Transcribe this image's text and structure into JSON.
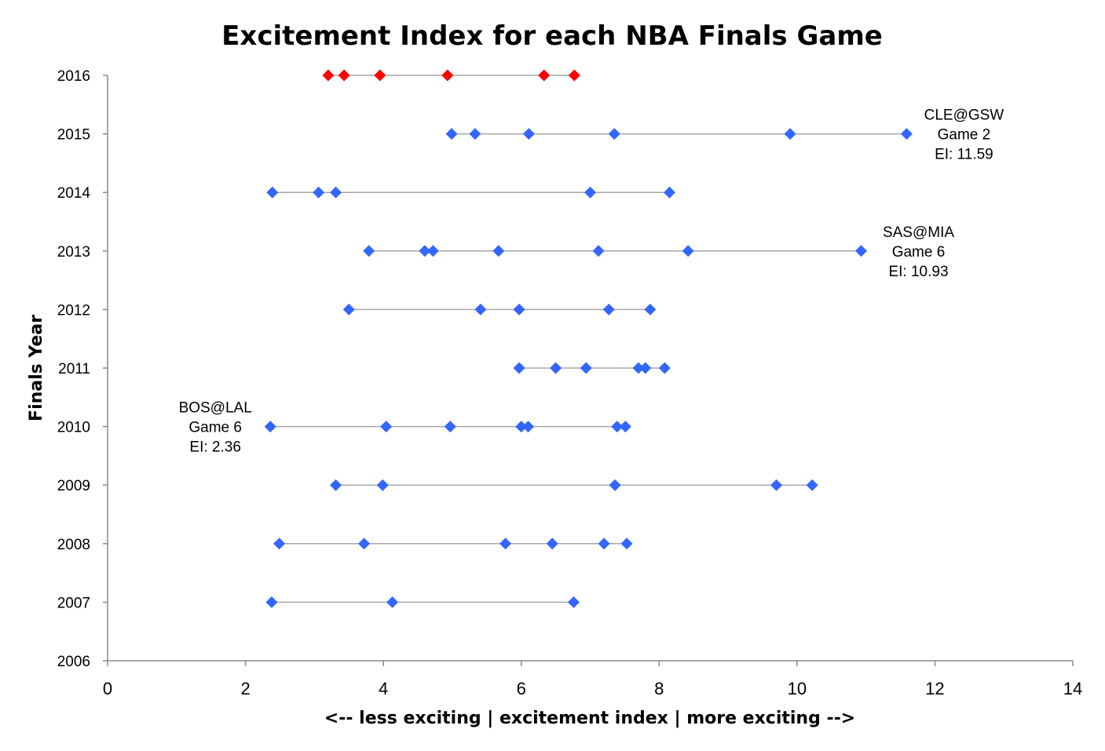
{
  "chart_data": {
    "type": "scatter",
    "title": "Excitement Index for each NBA Finals Game",
    "xlabel": "<-- less exciting | excitement index | more exciting -->",
    "ylabel": "Finals Year",
    "xlim": [
      0,
      14
    ],
    "ylim": [
      2006,
      2016
    ],
    "x_ticks": [
      "0",
      "2",
      "4",
      "6",
      "8",
      "10",
      "12",
      "14"
    ],
    "y_ticks": [
      "2006",
      "2007",
      "2008",
      "2009",
      "2010",
      "2011",
      "2012",
      "2013",
      "2014",
      "2015",
      "2016"
    ],
    "grid": false,
    "legend": "none",
    "colors": {
      "highlight": "#ff0000",
      "default": "#3366ff",
      "line": "#a6a6a6"
    },
    "series": [
      {
        "year": 2016,
        "color": "#ff0000",
        "values": [
          3.2,
          3.43,
          3.95,
          4.93,
          6.33,
          6.77
        ]
      },
      {
        "year": 2015,
        "color": "#3366ff",
        "values": [
          4.99,
          5.33,
          6.11,
          7.35,
          9.9,
          11.59
        ]
      },
      {
        "year": 2014,
        "color": "#3366ff",
        "values": [
          2.39,
          3.06,
          3.31,
          7.0,
          8.15
        ]
      },
      {
        "year": 2013,
        "color": "#3366ff",
        "values": [
          3.79,
          4.6,
          4.72,
          5.67,
          7.12,
          8.42,
          10.93
        ]
      },
      {
        "year": 2012,
        "color": "#3366ff",
        "values": [
          3.5,
          5.41,
          5.97,
          7.27,
          7.87
        ]
      },
      {
        "year": 2011,
        "color": "#3366ff",
        "values": [
          5.97,
          6.5,
          6.94,
          7.7,
          7.8,
          8.08
        ]
      },
      {
        "year": 2010,
        "color": "#3366ff",
        "values": [
          2.36,
          4.04,
          4.97,
          6.0,
          6.1,
          7.39,
          7.51
        ]
      },
      {
        "year": 2009,
        "color": "#3366ff",
        "values": [
          3.31,
          3.99,
          7.36,
          9.7,
          10.22
        ]
      },
      {
        "year": 2008,
        "color": "#3366ff",
        "values": [
          2.49,
          3.72,
          5.77,
          6.45,
          7.2,
          7.53
        ]
      },
      {
        "year": 2007,
        "color": "#3366ff",
        "values": [
          2.38,
          4.13,
          6.76
        ]
      }
    ],
    "annotations": [
      {
        "year": 2015,
        "x": 11.59,
        "side": "right",
        "lines": [
          "CLE@GSW",
          "Game 2",
          "EI: 11.59"
        ]
      },
      {
        "year": 2013,
        "x": 10.93,
        "side": "right",
        "lines": [
          "SAS@MIA",
          "Game 6",
          "EI: 10.93"
        ]
      },
      {
        "year": 2010,
        "x": 2.36,
        "side": "left",
        "lines": [
          "BOS@LAL",
          "Game 6",
          "EI: 2.36"
        ]
      }
    ]
  }
}
